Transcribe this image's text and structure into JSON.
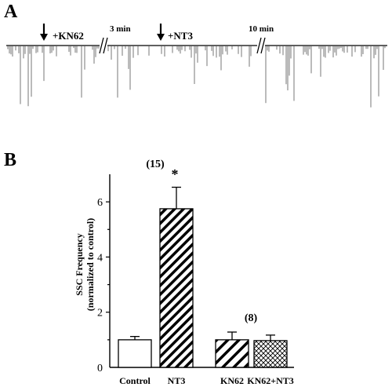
{
  "panel_a": {
    "letter": "A",
    "labels": {
      "kn62": "+KN62",
      "gap1": "3 min",
      "nt3": "+NT3",
      "gap2": "10 min"
    }
  },
  "panel_b": {
    "letter": "B"
  },
  "chart_data": {
    "type": "bar",
    "ylabel_line1": "SSC Frequency",
    "ylabel_line2": "(normalized to control)",
    "ylim": [
      0,
      7
    ],
    "yticks": [
      "0",
      "2",
      "4",
      "6"
    ],
    "categories": [
      "Control",
      "NT3",
      "KN62",
      "KN62+NT3"
    ],
    "values": [
      1.0,
      5.75,
      1.0,
      0.97
    ],
    "errors": [
      0.12,
      0.78,
      0.28,
      0.2
    ],
    "patterns": [
      "none",
      "hatch-dense",
      "hatch-wide",
      "crosshatch"
    ],
    "annotations": {
      "n_left": "(15)",
      "significance": "*",
      "n_right": "(8)"
    }
  }
}
